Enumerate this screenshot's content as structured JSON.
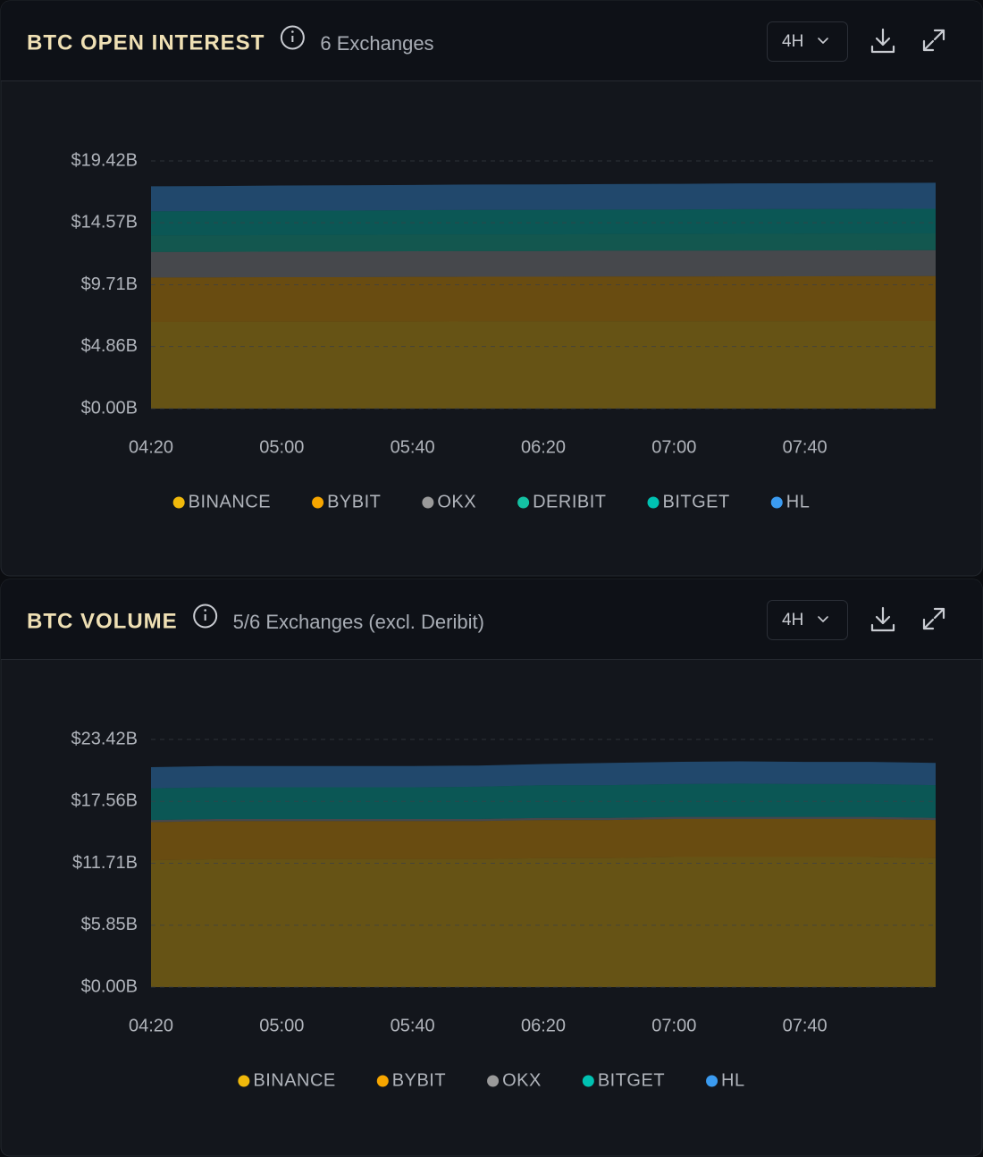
{
  "chart_data": [
    {
      "type": "area",
      "stacked": true,
      "title": "BTC OPEN INTEREST",
      "subtitle": "6 Exchanges",
      "timeframe": "4H",
      "categories": [
        "04:20",
        null,
        "05:00",
        null,
        "05:40",
        null,
        "06:20",
        null,
        "07:00",
        null,
        "07:40",
        null,
        null
      ],
      "series": [
        {
          "name": "BINANCE",
          "color": "#f0b90b",
          "values": [
            6.8,
            6.81,
            6.82,
            6.82,
            6.83,
            6.84,
            6.84,
            6.85,
            6.85,
            6.86,
            6.86,
            6.87,
            6.87
          ]
        },
        {
          "name": "BYBIT",
          "color": "#f7a600",
          "values": [
            3.48,
            3.48,
            3.49,
            3.49,
            3.5,
            3.5,
            3.5,
            3.51,
            3.51,
            3.51,
            3.52,
            3.52,
            3.52
          ]
        },
        {
          "name": "OKX",
          "color": "#9a9a9a",
          "values": [
            2.0,
            2.0,
            2.0,
            2.01,
            2.01,
            2.01,
            2.01,
            2.02,
            2.02,
            2.02,
            2.02,
            2.02,
            2.03
          ]
        },
        {
          "name": "DERIBIT",
          "color": "#14c2a3",
          "values": [
            1.3,
            1.3,
            1.3,
            1.3,
            1.31,
            1.31,
            1.31,
            1.31,
            1.31,
            1.32,
            1.32,
            1.32,
            1.32
          ]
        },
        {
          "name": "BITGET",
          "color": "#00c2b2",
          "values": [
            1.9,
            1.9,
            1.91,
            1.91,
            1.91,
            1.92,
            1.92,
            1.92,
            1.92,
            1.93,
            1.93,
            1.93,
            1.93
          ]
        },
        {
          "name": "HL",
          "color": "#3b9bf0",
          "values": [
            1.95,
            1.96,
            1.97,
            1.98,
            1.98,
            1.99,
            2.0,
            2.0,
            2.01,
            2.02,
            2.02,
            2.03,
            2.04
          ]
        }
      ],
      "ylim": [
        0,
        19.42
      ],
      "yticks": [
        {
          "value": 0,
          "label": "$0.00B"
        },
        {
          "value": 4.86,
          "label": "$4.86B"
        },
        {
          "value": 9.71,
          "label": "$9.71B"
        },
        {
          "value": 14.57,
          "label": "$14.57B"
        },
        {
          "value": 19.42,
          "label": "$19.42B"
        }
      ],
      "grid": true,
      "legend": "bottom"
    },
    {
      "type": "area",
      "stacked": true,
      "title": "BTC VOLUME",
      "subtitle": "5/6 Exchanges (excl. Deribit)",
      "timeframe": "4H",
      "categories": [
        "04:20",
        null,
        "05:00",
        null,
        "05:40",
        null,
        "06:20",
        null,
        "07:00",
        null,
        "07:40",
        null,
        null
      ],
      "series": [
        {
          "name": "BINANCE",
          "color": "#f0b90b",
          "values": [
            12.0,
            12.1,
            12.1,
            12.1,
            12.1,
            12.1,
            12.2,
            12.2,
            12.3,
            12.3,
            12.3,
            12.3,
            12.2
          ]
        },
        {
          "name": "BYBIT",
          "color": "#f7a600",
          "values": [
            3.6,
            3.6,
            3.6,
            3.6,
            3.6,
            3.6,
            3.6,
            3.6,
            3.6,
            3.6,
            3.6,
            3.6,
            3.6
          ]
        },
        {
          "name": "OKX",
          "color": "#9a9a9a",
          "values": [
            0.2,
            0.2,
            0.2,
            0.2,
            0.2,
            0.2,
            0.2,
            0.2,
            0.2,
            0.2,
            0.2,
            0.2,
            0.2
          ]
        },
        {
          "name": "BITGET",
          "color": "#00c2b2",
          "values": [
            3.0,
            3.0,
            3.0,
            3.0,
            3.0,
            3.05,
            3.1,
            3.1,
            3.1,
            3.15,
            3.1,
            3.1,
            3.1
          ]
        },
        {
          "name": "HL",
          "color": "#3b9bf0",
          "values": [
            2.0,
            2.0,
            2.0,
            2.0,
            2.0,
            2.0,
            2.0,
            2.1,
            2.1,
            2.1,
            2.1,
            2.1,
            2.1
          ]
        }
      ],
      "ylim": [
        0,
        23.42
      ],
      "yticks": [
        {
          "value": 0,
          "label": "$0.00B"
        },
        {
          "value": 5.85,
          "label": "$5.85B"
        },
        {
          "value": 11.71,
          "label": "$11.71B"
        },
        {
          "value": 17.56,
          "label": "$17.56B"
        },
        {
          "value": 23.42,
          "label": "$23.42B"
        }
      ],
      "grid": true,
      "legend": "bottom"
    }
  ]
}
